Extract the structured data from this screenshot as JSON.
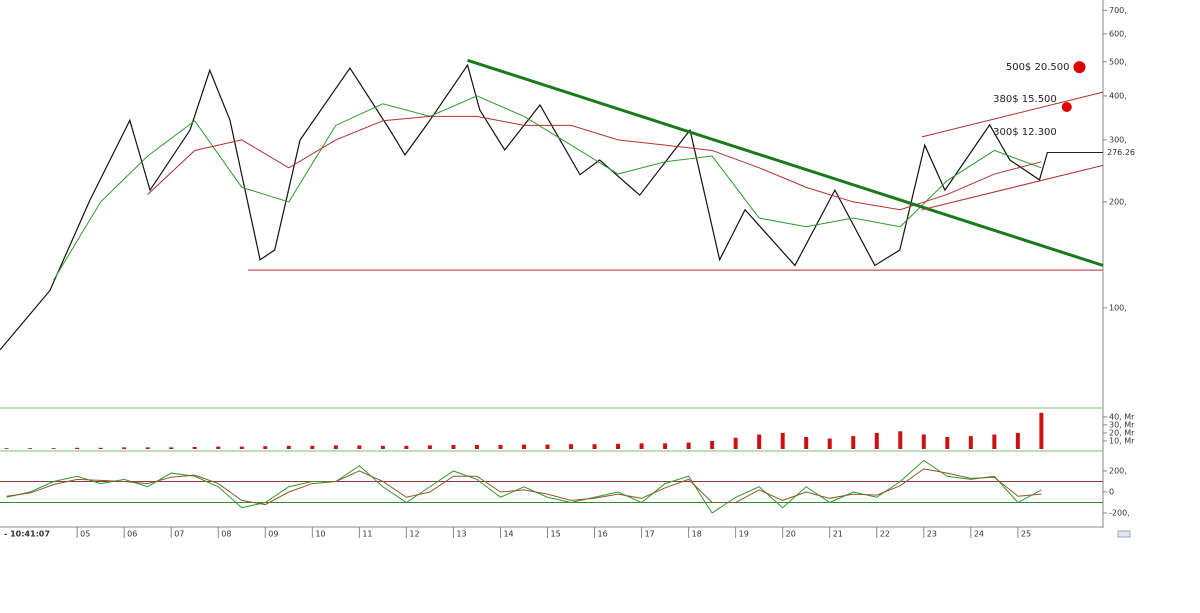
{
  "chart_data": [
    {
      "type": "line",
      "log": true,
      "xlim": [
        3.36,
        26.81
      ],
      "ylim": [
        53,
        749
      ],
      "yticks": [
        {
          "value": 100,
          "label": "100,"
        },
        {
          "value": 200,
          "label": "200,"
        },
        {
          "value": 300,
          "label": "300,"
        },
        {
          "value": 400,
          "label": "400,"
        },
        {
          "value": 500,
          "label": "500,"
        },
        {
          "value": 600,
          "label": "600,"
        },
        {
          "value": 700,
          "label": "700,"
        }
      ],
      "series": [
        {
          "color": "#111111",
          "x": [
            3.36,
            4.42,
            5.27,
            6.12,
            6.55,
            7.4,
            7.82,
            8.25,
            8.89,
            9.2,
            9.74,
            10.8,
            11.65,
            11.97,
            12.5,
            13.3,
            13.56,
            14.09,
            14.84,
            15.69,
            16.11,
            16.96,
            18.03,
            18.66,
            19.2,
            20.26,
            21.11,
            21.96,
            22.49,
            23.02,
            23.45,
            24.4,
            24.83,
            25.46,
            25.63
          ],
          "values": [
            76,
            112,
            202,
            341,
            216,
            320,
            473,
            341,
            137,
            146,
            300,
            480,
            320,
            272,
            341,
            489,
            365,
            281,
            377,
            239,
            263,
            209,
            320,
            137,
            190,
            132,
            216,
            132,
            146,
            290,
            216,
            331,
            263,
            231,
            277
          ]
        },
        {
          "color": "#2e9a2e",
          "x": [
            4.5,
            5.5,
            6.5,
            7.5,
            8.5,
            9.5,
            10.5,
            11.5,
            12.5,
            13.5,
            14.5,
            15.5,
            16.5,
            17.5,
            18.5,
            19.5,
            20.5,
            21.5,
            22.5,
            23.5,
            24.5,
            25.5
          ],
          "values": [
            120,
            200,
            270,
            340,
            220,
            200,
            330,
            380,
            350,
            400,
            350,
            290,
            240,
            260,
            270,
            180,
            170,
            180,
            170,
            230,
            280,
            250
          ]
        },
        {
          "color": "#b03030",
          "x": [
            6.5,
            7.5,
            8.5,
            9.5,
            10.5,
            11.5,
            12.5,
            13.5,
            14.5,
            15.5,
            16.5,
            17.5,
            18.5,
            19.5,
            20.5,
            21.5,
            22.5,
            23.5,
            24.5,
            25.5
          ],
          "values": [
            210,
            280,
            300,
            250,
            300,
            340,
            350,
            350,
            330,
            330,
            300,
            290,
            280,
            250,
            220,
            200,
            190,
            210,
            240,
            260
          ]
        }
      ],
      "lines": [
        {
          "color": "#1a7a1a",
          "width": 3,
          "x": [
            13.3,
            26.81
          ],
          "y": [
            505,
            132
          ]
        },
        {
          "color": "#b03030",
          "width": 1,
          "x": [
            8.63,
            26.81
          ],
          "y": [
            128,
            128
          ]
        },
        {
          "color": "#b03030",
          "width": 1,
          "x": [
            22.96,
            26.81
          ],
          "y": [
            306,
            410
          ]
        },
        {
          "color": "#b03030",
          "width": 1,
          "x": [
            22.96,
            26.81
          ],
          "y": [
            190,
            254
          ]
        }
      ],
      "last_price": {
        "value": 276.26,
        "x": 25.63
      },
      "annotations": [
        {
          "text": "500$ 20.500",
          "x": 26.31,
          "y": 483
        },
        {
          "text": "380$ 15.500",
          "x": 26.04,
          "y": 372
        },
        {
          "text": "300$ 12.300",
          "x": 26.04,
          "y": 300
        }
      ],
      "dot_color": "#e00000"
    },
    {
      "type": "bar",
      "xlim": [
        3.36,
        26.81
      ],
      "ylim": [
        0,
        46
      ],
      "color": "#cc1111",
      "yticks": [
        {
          "value": 10,
          "label": "10, Mr"
        },
        {
          "value": 20,
          "label": "20, Mr"
        },
        {
          "value": 30,
          "label": "30, Mr"
        },
        {
          "value": 40,
          "label": "40, Mr"
        }
      ],
      "x": [
        3.5,
        4,
        4.5,
        5,
        5.5,
        6,
        6.5,
        7,
        7.5,
        8,
        8.5,
        9,
        9.5,
        10,
        10.5,
        11,
        11.5,
        12,
        12.5,
        13,
        13.5,
        14,
        14.5,
        15,
        15.5,
        16,
        16.5,
        17,
        17.5,
        18,
        18.5,
        19,
        19.5,
        20,
        20.5,
        21,
        21.5,
        22,
        22.5,
        23,
        23.5,
        24,
        24.5,
        25,
        25.5
      ],
      "values": [
        1,
        1,
        1,
        1.5,
        1.5,
        2,
        2,
        2,
        2.5,
        3,
        3,
        3.5,
        4,
        4,
        4.5,
        4.5,
        4,
        4,
        4.5,
        5,
        5,
        5,
        5.5,
        5.5,
        6,
        6,
        6.5,
        7,
        7,
        8,
        10,
        14,
        18,
        20,
        15,
        13,
        16,
        20,
        22,
        18,
        15,
        16,
        18,
        20,
        45
      ]
    },
    {
      "type": "line",
      "xlim": [
        3.36,
        26.81
      ],
      "ylim": [
        -314,
        352
      ],
      "yticks": [
        {
          "value": -200,
          "label": "-200,"
        },
        0,
        {
          "value": 200,
          "label": "200,"
        }
      ],
      "xticks": [
        {
          "value": 5,
          "label": "05"
        },
        {
          "value": 6,
          "label": "06"
        },
        {
          "value": 7,
          "label": "07"
        },
        {
          "value": 8,
          "label": "08"
        },
        {
          "value": 9,
          "label": "09"
        },
        10,
        11,
        12,
        13,
        14,
        15,
        16,
        17,
        18,
        19,
        20,
        21,
        22,
        23,
        24,
        25
      ],
      "time": "- 10:41:07",
      "levels": [
        {
          "value": 100,
          "color": "#8b3a3a"
        },
        {
          "value": -100,
          "color": "#2e8b2e"
        }
      ],
      "series": [
        {
          "color": "#2e9a2e",
          "x": [
            3.5,
            4,
            4.5,
            5,
            5.5,
            6,
            6.5,
            7,
            7.5,
            8,
            8.5,
            9,
            9.5,
            10,
            10.5,
            11,
            11.5,
            12,
            12.5,
            13,
            13.5,
            14,
            14.5,
            15,
            15.5,
            16,
            16.5,
            17,
            17.5,
            18,
            18.5,
            19,
            19.5,
            20,
            20.5,
            21,
            21.5,
            22,
            22.5,
            23,
            23.5,
            24,
            24.5,
            25,
            25.5
          ],
          "values": [
            -50,
            0,
            100,
            150,
            80,
            120,
            50,
            180,
            150,
            50,
            -150,
            -100,
            50,
            100,
            100,
            250,
            50,
            -100,
            50,
            200,
            120,
            -50,
            50,
            -50,
            -100,
            -50,
            0,
            -100,
            80,
            150,
            -200,
            -50,
            50,
            -150,
            50,
            -100,
            0,
            -50,
            100,
            300,
            150,
            120,
            150,
            -100,
            20
          ]
        },
        {
          "color": "#8b5a2b",
          "x": [
            3.5,
            4,
            4.5,
            5,
            5.5,
            6,
            6.5,
            7,
            7.5,
            8,
            8.5,
            9,
            9.5,
            10,
            10.5,
            11,
            11.5,
            12,
            12.5,
            13,
            13.5,
            14,
            14.5,
            15,
            15.5,
            16,
            16.5,
            17,
            17.5,
            18,
            18.5,
            19,
            19.5,
            20,
            20.5,
            21,
            21.5,
            22,
            22.5,
            23,
            23.5,
            24,
            24.5,
            25,
            25.5
          ],
          "values": [
            -40,
            -10,
            70,
            120,
            110,
            100,
            80,
            140,
            160,
            80,
            -80,
            -120,
            0,
            80,
            100,
            200,
            100,
            -50,
            0,
            150,
            150,
            0,
            20,
            -20,
            -80,
            -60,
            -20,
            -60,
            40,
            120,
            -100,
            -100,
            20,
            -80,
            0,
            -60,
            -20,
            -30,
            60,
            220,
            180,
            130,
            140,
            -40,
            -20
          ]
        }
      ]
    }
  ]
}
